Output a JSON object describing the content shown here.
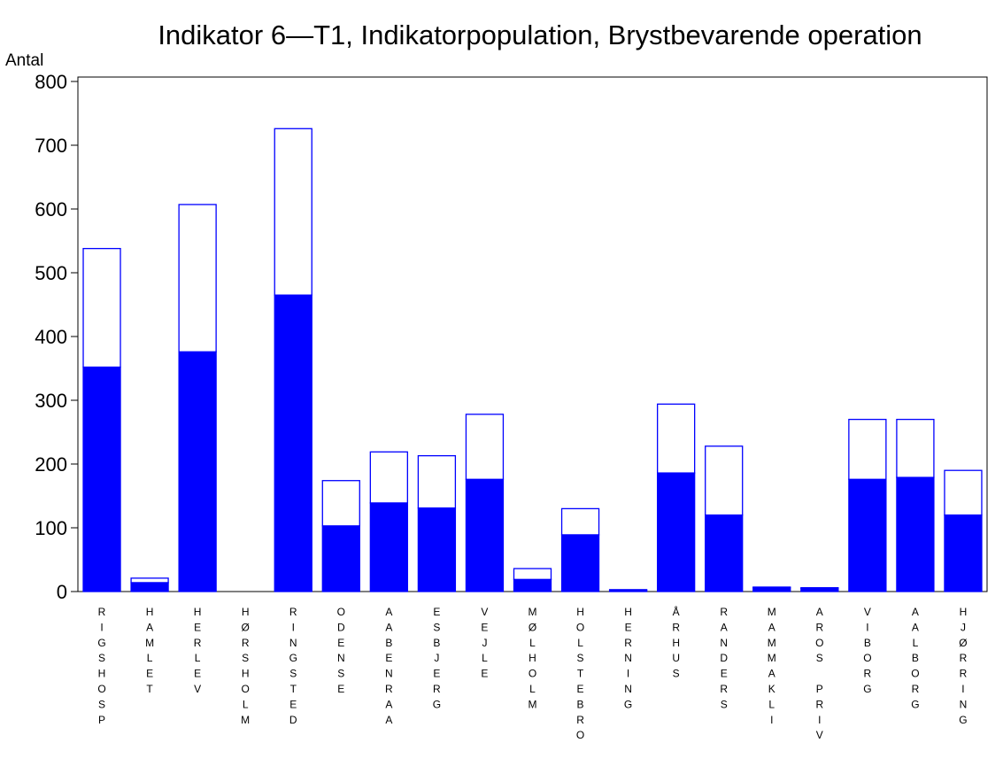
{
  "chart_data": {
    "type": "stacked_bar",
    "title": "Indikator 6—T1, Indikatorpopulation, Brystbevarende operation",
    "y_label": "Antal",
    "categories": [
      "RIGSHOSP",
      "HAMLET",
      "HERLEV",
      "HØRSHOLM",
      "RINGSTED",
      "ODENSE",
      "AABENRAA",
      "ESBJERG",
      "VEJLE",
      "MØLHOLM",
      "HOLSTEBRO",
      "HERNING",
      "ÅRHUS",
      "RANDERS",
      "MAMMAKLI",
      "AROS PRIV",
      "VIBORG",
      "AALBORG",
      "HJØRRING"
    ],
    "series": [
      {
        "color": "#0000ff",
        "values": [
          352,
          14,
          376,
          0,
          465,
          103,
          139,
          131,
          176,
          19,
          89,
          2,
          186,
          120,
          6,
          5,
          176,
          179,
          120
        ]
      },
      {
        "color": "#ffffff",
        "values": [
          186,
          7,
          231,
          0,
          261,
          71,
          80,
          82,
          102,
          17,
          41,
          1,
          108,
          108,
          1,
          1,
          94,
          91,
          70
        ]
      }
    ],
    "outline_color": "#0000ff",
    "ylim": [
      0,
      800
    ],
    "yticks": [
      0,
      100,
      200,
      300,
      400,
      500,
      600,
      700,
      800
    ]
  }
}
